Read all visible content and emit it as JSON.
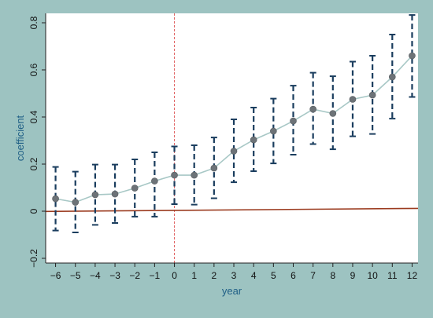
{
  "chart_data": {
    "type": "scatter",
    "title": "",
    "xlabel": "year",
    "ylabel": "coefficient",
    "x": [
      -6,
      -5,
      -4,
      -3,
      -2,
      -1,
      0,
      1,
      2,
      3,
      4,
      5,
      6,
      7,
      8,
      9,
      10,
      11,
      12
    ],
    "series": [
      {
        "values": [
          0.053,
          0.038,
          0.07,
          0.073,
          0.098,
          0.128,
          0.153,
          0.153,
          0.183,
          0.255,
          0.303,
          0.34,
          0.383,
          0.433,
          0.415,
          0.475,
          0.493,
          0.57,
          0.66
        ],
        "ci_lower": [
          -0.082,
          -0.09,
          -0.058,
          -0.05,
          -0.023,
          -0.023,
          0.03,
          0.028,
          0.055,
          0.123,
          0.17,
          0.203,
          0.24,
          0.285,
          0.263,
          0.318,
          0.328,
          0.393,
          0.485
        ],
        "ci_upper": [
          0.188,
          0.168,
          0.198,
          0.198,
          0.22,
          0.25,
          0.275,
          0.28,
          0.313,
          0.39,
          0.44,
          0.478,
          0.533,
          0.588,
          0.573,
          0.635,
          0.66,
          0.75,
          0.833
        ]
      }
    ],
    "x_ticks": [
      "−6",
      "−5",
      "−4",
      "−3",
      "−2",
      "−1",
      "0",
      "1",
      "2",
      "3",
      "4",
      "5",
      "6",
      "7",
      "8",
      "9",
      "10",
      "11",
      "12"
    ],
    "y_ticks": [
      "−0.2",
      "0",
      "0.2",
      "0.4",
      "0.6",
      "0.8"
    ],
    "y_tick_values": [
      -0.2,
      0,
      0.2,
      0.4,
      0.6,
      0.8
    ],
    "xlim": [
      -6.5,
      12.3
    ],
    "ylim": [
      -0.22,
      0.84
    ],
    "reference_lines": {
      "vertical_x": 0,
      "horizontal_fit": [
        [
          -6.5,
          -0.001
        ],
        [
          12.3,
          0.012
        ]
      ]
    },
    "grid": false,
    "legend": "none",
    "colors": {
      "frame_bg": "#9dc3c1",
      "plot_bg": "#ffffff",
      "errorbar": "#1a3d5e",
      "point": "#6d7378",
      "connect_line": "#a8c8c6",
      "vline": "#e06060",
      "hline": "#9b3b1f",
      "axis_title": "#1f5f86"
    }
  }
}
